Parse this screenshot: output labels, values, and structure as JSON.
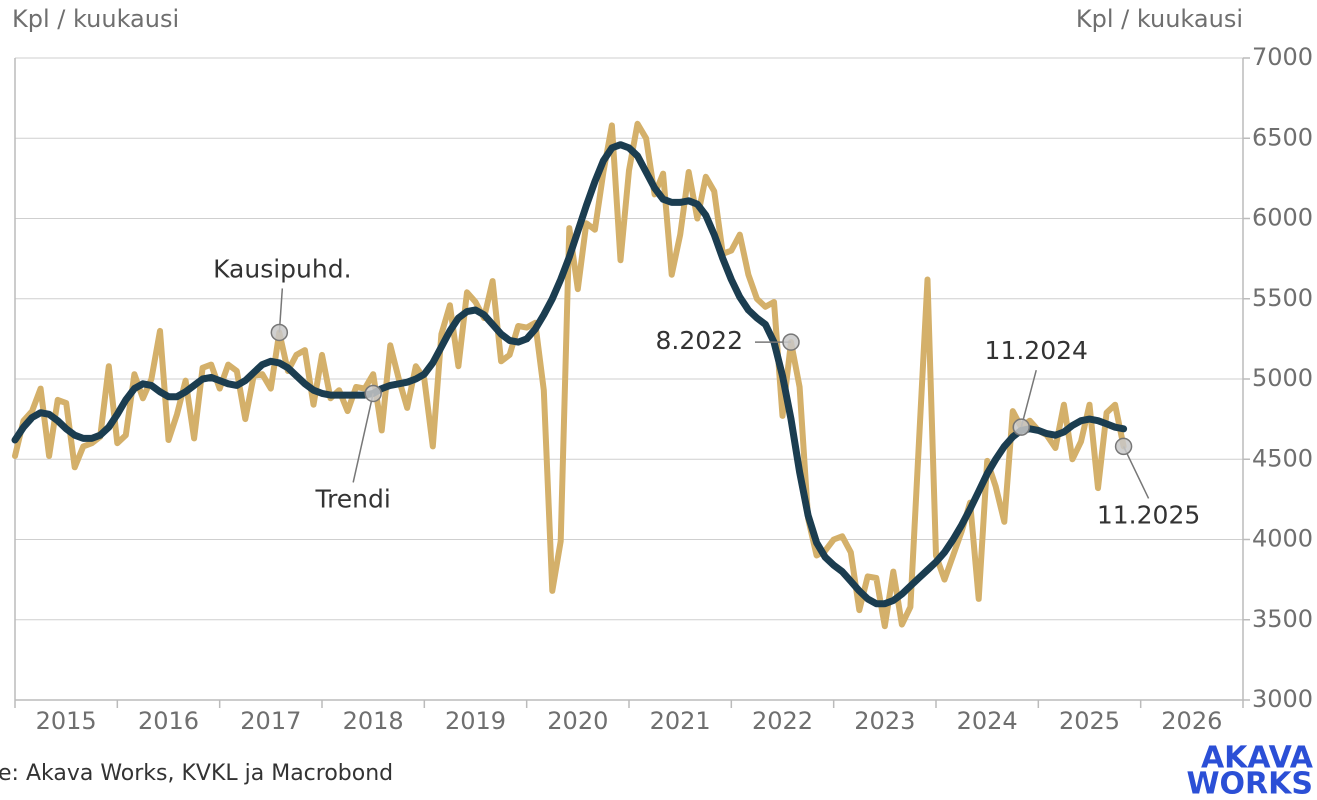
{
  "chart_data": {
    "type": "line",
    "y_label_left": "Kpl / kuukausi",
    "y_label_right": "Kpl / kuukausi",
    "source": "e: Akava Works, KVKL ja Macrobond",
    "logo": [
      "AKAVA",
      "WORKS"
    ],
    "xlim": [
      2015,
      2027
    ],
    "xticks": [
      {
        "value": 2015.5,
        "label": "2015"
      },
      {
        "value": 2016.5,
        "label": "2016"
      },
      {
        "value": 2017.5,
        "label": "2017"
      },
      {
        "value": 2018.5,
        "label": "2018"
      },
      {
        "value": 2019.5,
        "label": "2019"
      },
      {
        "value": 2020.5,
        "label": "2020"
      },
      {
        "value": 2021.5,
        "label": "2021"
      },
      {
        "value": 2022.5,
        "label": "2022"
      },
      {
        "value": 2023.5,
        "label": "2023"
      },
      {
        "value": 2024.5,
        "label": "2024"
      },
      {
        "value": 2025.5,
        "label": "2025"
      },
      {
        "value": 2026.5,
        "label": "2026"
      }
    ],
    "ylim": [
      3000,
      7000
    ],
    "yticks": [
      3000,
      3500,
      4000,
      4500,
      5000,
      5500,
      6000,
      6500,
      7000
    ],
    "grid": true,
    "x": [
      2015,
      2015.083,
      2015.167,
      2015.25,
      2015.333,
      2015.417,
      2015.5,
      2015.583,
      2015.667,
      2015.75,
      2015.833,
      2015.917,
      2016,
      2016.083,
      2016.167,
      2016.25,
      2016.333,
      2016.417,
      2016.5,
      2016.583,
      2016.667,
      2016.75,
      2016.833,
      2016.917,
      2017,
      2017.083,
      2017.167,
      2017.25,
      2017.333,
      2017.417,
      2017.5,
      2017.583,
      2017.667,
      2017.75,
      2017.833,
      2017.917,
      2018,
      2018.083,
      2018.167,
      2018.25,
      2018.333,
      2018.417,
      2018.5,
      2018.583,
      2018.667,
      2018.75,
      2018.833,
      2018.917,
      2019,
      2019.083,
      2019.167,
      2019.25,
      2019.333,
      2019.417,
      2019.5,
      2019.583,
      2019.667,
      2019.75,
      2019.833,
      2019.917,
      2020,
      2020.083,
      2020.167,
      2020.25,
      2020.333,
      2020.417,
      2020.5,
      2020.583,
      2020.667,
      2020.75,
      2020.833,
      2020.917,
      2021,
      2021.083,
      2021.167,
      2021.25,
      2021.333,
      2021.417,
      2021.5,
      2021.583,
      2021.667,
      2021.75,
      2021.833,
      2021.917,
      2022,
      2022.083,
      2022.167,
      2022.25,
      2022.333,
      2022.417,
      2022.5,
      2022.583,
      2022.667,
      2022.75,
      2022.833,
      2022.917,
      2023,
      2023.083,
      2023.167,
      2023.25,
      2023.333,
      2023.417,
      2023.5,
      2023.583,
      2023.667,
      2023.75,
      2023.833,
      2023.917,
      2024,
      2024.083,
      2024.167,
      2024.25,
      2024.333,
      2024.417,
      2024.5,
      2024.583,
      2024.667,
      2024.75,
      2024.833,
      2024.917,
      2025,
      2025.083,
      2025.167,
      2025.25,
      2025.333,
      2025.417,
      2025.5,
      2025.583,
      2025.667,
      2025.75,
      2025.833
    ],
    "series": [
      {
        "name": "Kausipuhd.",
        "color": "#d4b06a",
        "values": [
          4520,
          4740,
          4800,
          4940,
          4520,
          4870,
          4850,
          4450,
          4580,
          4600,
          4640,
          5080,
          4600,
          4650,
          5030,
          4880,
          5000,
          5300,
          4620,
          4780,
          4990,
          4630,
          5070,
          5090,
          4940,
          5090,
          5050,
          4750,
          5020,
          5030,
          4940,
          5290,
          5050,
          5150,
          5180,
          4840,
          5150,
          4880,
          4930,
          4800,
          4950,
          4940,
          5030,
          4680,
          5210,
          5000,
          4820,
          5080,
          5000,
          4580,
          5280,
          5460,
          5080,
          5540,
          5480,
          5380,
          5610,
          5110,
          5150,
          5330,
          5320,
          5350,
          4930,
          3680,
          3990,
          5940,
          5560,
          5970,
          5930,
          6290,
          6580,
          5740,
          6300,
          6590,
          6500,
          6150,
          6280,
          5650,
          5900,
          6290,
          6000,
          6260,
          6170,
          5780,
          5800,
          5900,
          5650,
          5500,
          5450,
          5480,
          4770,
          5230,
          4950,
          4130,
          3900,
          3930,
          4000,
          4020,
          3920,
          3560,
          3770,
          3760,
          3460,
          3800,
          3470,
          3580,
          4600,
          5620,
          3900,
          3750,
          3900,
          4050,
          4230,
          3630,
          4490,
          4330,
          4110,
          4800,
          4700,
          4740,
          4680,
          4650,
          4570,
          4840,
          4500,
          4610,
          4840,
          4320,
          4790,
          4840,
          4580
        ]
      },
      {
        "name": "Trendi",
        "color": "#1b3d50",
        "values": [
          4620,
          4700,
          4760,
          4790,
          4780,
          4740,
          4690,
          4650,
          4630,
          4630,
          4650,
          4700,
          4780,
          4870,
          4940,
          4970,
          4960,
          4920,
          4890,
          4890,
          4920,
          4960,
          5000,
          5010,
          4990,
          4970,
          4960,
          4990,
          5040,
          5090,
          5110,
          5100,
          5070,
          5020,
          4970,
          4930,
          4910,
          4900,
          4900,
          4900,
          4900,
          4900,
          4910,
          4940,
          4960,
          4970,
          4980,
          5000,
          5030,
          5100,
          5200,
          5300,
          5380,
          5420,
          5430,
          5400,
          5340,
          5280,
          5240,
          5230,
          5250,
          5310,
          5400,
          5500,
          5620,
          5760,
          5920,
          6080,
          6230,
          6360,
          6440,
          6460,
          6440,
          6390,
          6290,
          6190,
          6120,
          6100,
          6100,
          6110,
          6090,
          6020,
          5900,
          5750,
          5620,
          5510,
          5430,
          5380,
          5340,
          5230,
          5020,
          4750,
          4420,
          4150,
          3980,
          3890,
          3840,
          3800,
          3740,
          3680,
          3630,
          3600,
          3600,
          3620,
          3660,
          3710,
          3760,
          3810,
          3860,
          3920,
          4000,
          4090,
          4190,
          4300,
          4410,
          4500,
          4580,
          4640,
          4680,
          4690,
          4680,
          4660,
          4650,
          4670,
          4710,
          4740,
          4750,
          4740,
          4720,
          4700,
          4690
        ]
      }
    ],
    "annotations": [
      {
        "text": "Kausipuhd.",
        "x": 2017.583,
        "y": 5290
      },
      {
        "text": "Trendi",
        "x": 2018.5,
        "y": 4910
      },
      {
        "text": "8.2022",
        "x": 2022.583,
        "y": 5230
      },
      {
        "text": "11.2024",
        "x": 2024.833,
        "y": 4700
      },
      {
        "text": "11.2025",
        "x": 2025.833,
        "y": 4580
      }
    ]
  }
}
